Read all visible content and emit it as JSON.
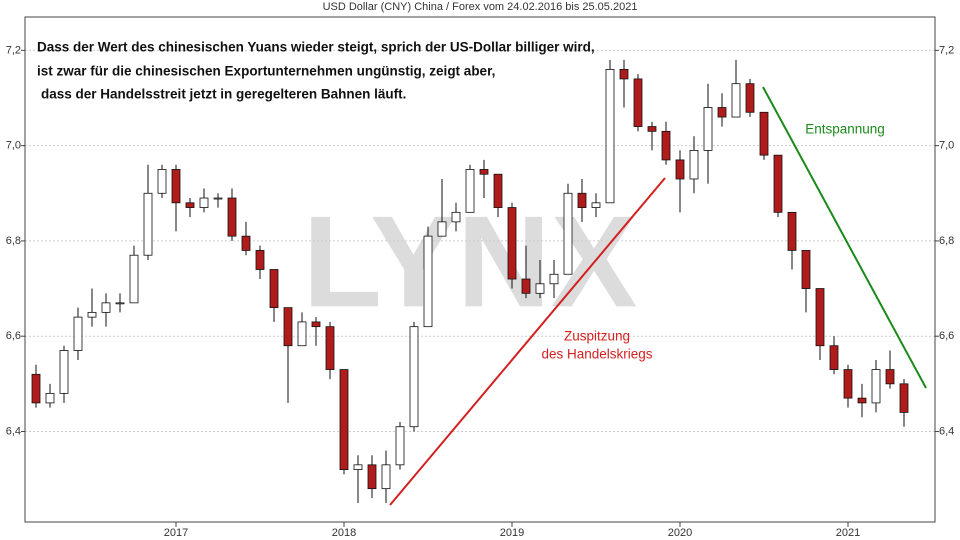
{
  "chart_data": {
    "type": "candlestick",
    "title": "USD Dollar (CNY) China / Forex vom 24.02.2016 bis 25.05.2021",
    "watermark": "LYNX",
    "annotation_lines": [
      "Dass der Wert des chinesischen Yuans wieder steigt, sprich der US-Dollar billiger wird,",
      "ist zwar für die chinesischen Exportunternehmen ungünstig, zeigt aber,",
      "dass der Handelsstreit jetzt in geregelteren Bahnen läuft."
    ],
    "label_relief": "Entspannung",
    "label_escalation": [
      "Zuspitzung",
      "des Handelskriegs"
    ],
    "up_color": "#ffffff",
    "down_color": "#b01c1c",
    "relief_color": "#1a8a1a",
    "escalation_color": "#d42020",
    "categories": [
      null,
      null,
      null,
      null,
      null,
      null,
      null,
      null,
      null,
      null,
      "2017",
      null,
      null,
      null,
      null,
      null,
      null,
      null,
      null,
      null,
      null,
      null,
      "2018",
      null,
      null,
      null,
      null,
      null,
      null,
      null,
      null,
      null,
      null,
      null,
      "2019",
      null,
      null,
      null,
      null,
      null,
      null,
      null,
      null,
      null,
      null,
      null,
      "2020",
      null,
      null,
      null,
      null,
      null,
      null,
      null,
      null,
      null,
      null,
      null,
      "2021",
      null,
      null,
      null,
      null
    ],
    "open": [
      6.52,
      6.46,
      6.48,
      6.57,
      6.64,
      6.65,
      6.67,
      6.67,
      6.77,
      6.9,
      6.95,
      6.88,
      6.87,
      6.89,
      6.89,
      6.81,
      6.78,
      6.74,
      6.66,
      6.58,
      6.63,
      6.62,
      6.53,
      6.32,
      6.33,
      6.28,
      6.33,
      6.41,
      6.62,
      6.81,
      6.84,
      6.86,
      6.95,
      6.94,
      6.87,
      6.72,
      6.69,
      6.71,
      6.73,
      6.9,
      6.87,
      6.88,
      7.16,
      7.14,
      7.04,
      7.03,
      6.97,
      6.93,
      6.99,
      7.08,
      7.06,
      7.13,
      7.07,
      6.98,
      6.86,
      6.78,
      6.7,
      6.58,
      6.53,
      6.47,
      6.46,
      6.53,
      6.5
    ],
    "high": [
      6.54,
      6.5,
      6.58,
      6.66,
      6.7,
      6.69,
      6.69,
      6.79,
      6.96,
      6.96,
      6.96,
      6.89,
      6.91,
      6.9,
      6.91,
      6.84,
      6.79,
      6.74,
      6.66,
      6.65,
      6.64,
      6.63,
      6.53,
      6.35,
      6.35,
      6.36,
      6.42,
      6.63,
      6.83,
      6.93,
      6.88,
      6.96,
      6.97,
      6.94,
      6.88,
      6.79,
      6.76,
      6.76,
      6.92,
      6.93,
      6.9,
      7.18,
      7.18,
      7.15,
      7.05,
      7.05,
      6.99,
      7.02,
      7.13,
      7.11,
      7.18,
      7.14,
      7.07,
      6.98,
      6.86,
      6.78,
      6.7,
      6.6,
      6.54,
      6.5,
      6.55,
      6.57,
      6.51
    ],
    "low": [
      6.45,
      6.45,
      6.46,
      6.55,
      6.62,
      6.62,
      6.65,
      6.67,
      6.76,
      6.89,
      6.82,
      6.85,
      6.86,
      6.87,
      6.8,
      6.77,
      6.72,
      6.63,
      6.46,
      6.58,
      6.58,
      6.51,
      6.31,
      6.25,
      6.26,
      6.25,
      6.32,
      6.4,
      6.62,
      6.81,
      6.82,
      6.86,
      6.89,
      6.85,
      6.7,
      6.68,
      6.68,
      6.68,
      6.73,
      6.84,
      6.85,
      6.88,
      7.08,
      7.03,
      6.99,
      6.96,
      6.86,
      6.9,
      6.92,
      7.04,
      7.06,
      7.06,
      6.97,
      6.85,
      6.74,
      6.65,
      6.55,
      6.52,
      6.45,
      6.43,
      6.44,
      6.49,
      6.41
    ],
    "close": [
      6.46,
      6.48,
      6.57,
      6.64,
      6.65,
      6.67,
      6.67,
      6.77,
      6.9,
      6.95,
      6.88,
      6.87,
      6.89,
      6.89,
      6.81,
      6.78,
      6.74,
      6.66,
      6.58,
      6.63,
      6.62,
      6.53,
      6.32,
      6.33,
      6.28,
      6.33,
      6.41,
      6.62,
      6.81,
      6.84,
      6.86,
      6.95,
      6.94,
      6.87,
      6.72,
      6.69,
      6.71,
      6.73,
      6.9,
      6.87,
      6.88,
      7.16,
      7.14,
      7.04,
      7.03,
      6.97,
      6.93,
      6.99,
      7.08,
      7.06,
      7.13,
      7.07,
      6.98,
      6.86,
      6.78,
      6.7,
      6.58,
      6.53,
      6.47,
      6.46,
      6.53,
      6.5,
      6.44
    ],
    "ylim": [
      6.21,
      7.27
    ],
    "yticks": [
      {
        "value": 6.4,
        "label": "6,4"
      },
      {
        "value": 6.6,
        "label": "6,6"
      },
      {
        "value": 6.8,
        "label": "6,8"
      },
      {
        "value": 7.0,
        "label": "7,0"
      },
      {
        "value": 7.2,
        "label": "7,2"
      }
    ],
    "grid": true
  }
}
